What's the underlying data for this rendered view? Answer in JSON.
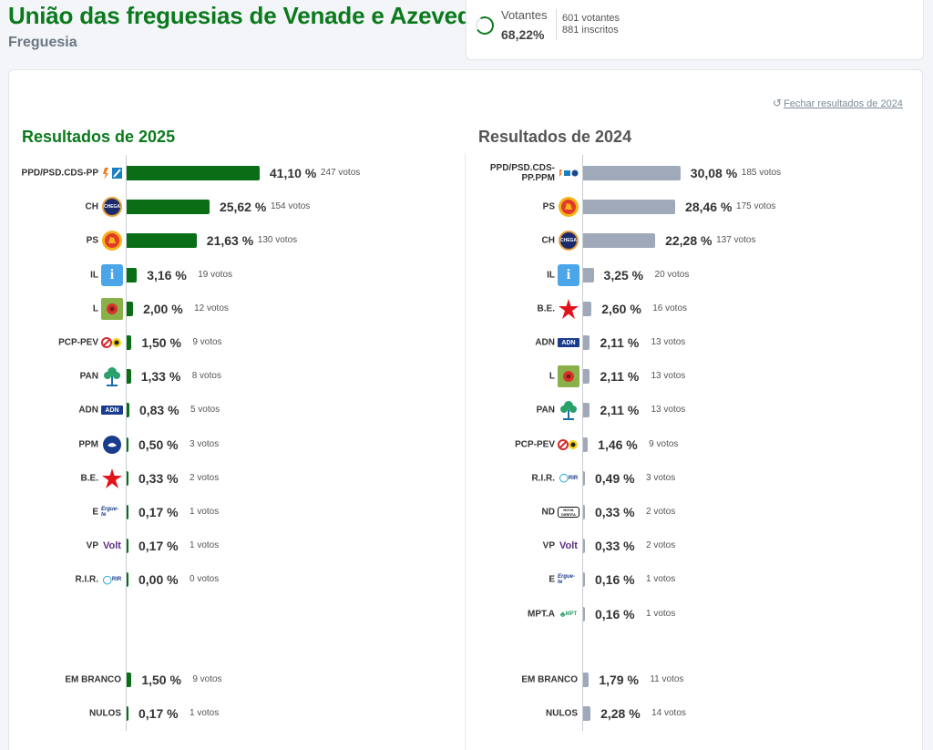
{
  "header": {
    "title": "União das freguesias de Venade e Azevedo",
    "subtitle": "Freguesia"
  },
  "turnout": {
    "label": "Votantes",
    "percent": "68,22%",
    "fraction": 0.6822,
    "voters": "601 votantes",
    "registered": "881 inscritos"
  },
  "close_link": "Fechar resultados de 2024",
  "chart_data": [
    {
      "type": "bar",
      "title": "Resultados de 2025",
      "color": "#0a6e17",
      "categories": [
        "PPD/PSD.CDS-PP",
        "CH",
        "PS",
        "IL",
        "L",
        "PCP-PEV",
        "PAN",
        "ADN",
        "PPM",
        "B.E.",
        "E",
        "VP",
        "R.I.R.",
        "EM BRANCO",
        "NULOS"
      ],
      "values": [
        41.1,
        25.62,
        21.63,
        3.16,
        2.0,
        1.5,
        1.33,
        0.83,
        0.5,
        0.33,
        0.17,
        0.17,
        0.0,
        1.5,
        0.17
      ],
      "value_labels": [
        "41,10 %",
        "25,62 %",
        "21,63 %",
        "3,16 %",
        "2,00 %",
        "1,50 %",
        "1,33 %",
        "0,83 %",
        "0,50 %",
        "0,33 %",
        "0,17 %",
        "0,17 %",
        "0,00 %",
        "1,50 %",
        "0,17 %"
      ],
      "votes": [
        "247 votos",
        "154 votos",
        "130 votos",
        "19 votos",
        "12 votos",
        "9 votos",
        "8 votos",
        "5 votos",
        "3 votos",
        "2 votos",
        "1 votos",
        "1 votos",
        "0 votos",
        "9 votos",
        "1 votos"
      ],
      "logos": [
        "psd-cds-logo",
        "chega-logo",
        "ps-logo",
        "il-logo",
        "livre-logo",
        "cdu-logo",
        "pan-logo",
        "adn-logo",
        "ppm-logo",
        "be-logo",
        "ergue-te-logo",
        "volt-logo",
        "rir-logo",
        "none",
        "none"
      ]
    },
    {
      "type": "bar",
      "title": "Resultados de 2024",
      "color": "#a0a9ba",
      "categories": [
        "PPD/PSD.CDS-PP.PPM",
        "PS",
        "CH",
        "IL",
        "B.E.",
        "ADN",
        "L",
        "PAN",
        "PCP-PEV",
        "R.I.R.",
        "ND",
        "VP",
        "E",
        "MPT.A",
        "EM BRANCO",
        "NULOS"
      ],
      "values": [
        30.08,
        28.46,
        22.28,
        3.25,
        2.6,
        2.11,
        2.11,
        2.11,
        1.46,
        0.49,
        0.33,
        0.33,
        0.16,
        0.16,
        1.79,
        2.28
      ],
      "value_labels": [
        "30,08 %",
        "28,46 %",
        "22,28 %",
        "3,25 %",
        "2,60 %",
        "2,11 %",
        "2,11 %",
        "2,11 %",
        "1,46 %",
        "0,49 %",
        "0,33 %",
        "0,33 %",
        "0,16 %",
        "0,16 %",
        "1,79 %",
        "2,28 %"
      ],
      "votes": [
        "185 votos",
        "175 votos",
        "137 votos",
        "20 votos",
        "16 votos",
        "13 votos",
        "13 votos",
        "13 votos",
        "9 votos",
        "3 votos",
        "2 votos",
        "2 votos",
        "1 votos",
        "1 votos",
        "11 votos",
        "14 votos"
      ],
      "logos": [
        "ad-logo",
        "ps-logo",
        "chega-logo",
        "il-logo",
        "be-logo",
        "adn-logo",
        "livre-logo",
        "pan-logo",
        "cdu-logo",
        "rir-logo",
        "nova-direita-logo",
        "volt-logo",
        "ergue-te-logo",
        "mpt-alianca-logo",
        "none",
        "none"
      ]
    }
  ],
  "logo_text": {
    "chega": "CHEGA",
    "adn": "ADN",
    "volt": "Volt",
    "ergue": "Ergue-te",
    "rir": "RIR",
    "nd": "NOVA DIREITA",
    "mpt": "MPT"
  }
}
